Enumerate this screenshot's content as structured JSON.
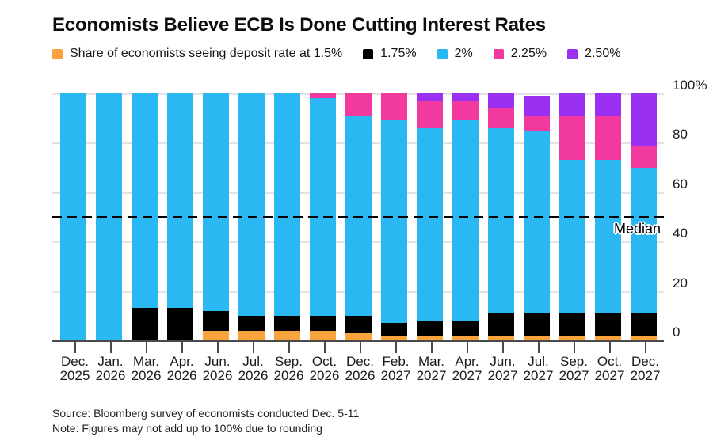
{
  "title": "Economists Believe ECB Is Done Cutting Interest Rates",
  "legend": [
    {
      "label": "Share of economists seeing deposit rate at 1.5%",
      "color": "#F8A33B"
    },
    {
      "label": "1.75%",
      "color": "#000000"
    },
    {
      "label": "2%",
      "color": "#2BB7F2"
    },
    {
      "label": "2.25%",
      "color": "#F2399F"
    },
    {
      "label": "2.50%",
      "color": "#9930F2"
    }
  ],
  "chart_data": {
    "type": "bar",
    "stacked": true,
    "title": "Economists Believe ECB Is Done Cutting Interest Rates",
    "categories": [
      {
        "month": "Dec.",
        "year": "2025"
      },
      {
        "month": "Jan.",
        "year": "2026"
      },
      {
        "month": "Mar.",
        "year": "2026"
      },
      {
        "month": "Apr.",
        "year": "2026"
      },
      {
        "month": "Jun.",
        "year": "2026"
      },
      {
        "month": "Jul.",
        "year": "2026"
      },
      {
        "month": "Sep.",
        "year": "2026"
      },
      {
        "month": "Oct.",
        "year": "2026"
      },
      {
        "month": "Dec.",
        "year": "2026"
      },
      {
        "month": "Feb.",
        "year": "2027"
      },
      {
        "month": "Mar.",
        "year": "2027"
      },
      {
        "month": "Apr.",
        "year": "2027"
      },
      {
        "month": "Jun.",
        "year": "2027"
      },
      {
        "month": "Jul.",
        "year": "2027"
      },
      {
        "month": "Sep.",
        "year": "2027"
      },
      {
        "month": "Oct.",
        "year": "2027"
      },
      {
        "month": "Dec.",
        "year": "2027"
      }
    ],
    "series": [
      {
        "name": "1.5%",
        "color": "#F8A33B",
        "values": [
          0,
          0,
          0,
          0,
          4,
          4,
          4,
          4,
          3,
          2,
          2,
          2,
          2,
          2,
          2,
          2,
          2
        ]
      },
      {
        "name": "1.75%",
        "color": "#000000",
        "values": [
          0,
          0,
          13,
          13,
          8,
          6,
          6,
          6,
          7,
          5,
          6,
          6,
          9,
          9,
          9,
          9,
          9
        ]
      },
      {
        "name": "2%",
        "color": "#2BB7F2",
        "values": [
          100,
          100,
          87,
          87,
          88,
          90,
          90,
          88,
          81,
          82,
          78,
          81,
          75,
          74,
          62,
          62,
          59
        ]
      },
      {
        "name": "2.25%",
        "color": "#F2399F",
        "values": [
          0,
          0,
          0,
          0,
          0,
          0,
          0,
          2,
          9,
          11,
          11,
          8,
          8,
          6,
          18,
          18,
          9
        ]
      },
      {
        "name": "2.50%",
        "color": "#9930F2",
        "values": [
          0,
          0,
          0,
          0,
          0,
          0,
          0,
          0,
          0,
          0,
          3,
          3,
          6,
          8,
          9,
          9,
          21
        ]
      }
    ],
    "ylim": [
      0,
      100
    ],
    "yticks": [
      0,
      20,
      40,
      60,
      80,
      100
    ],
    "ytick_labels": [
      "0",
      "20",
      "40",
      "60",
      "80",
      "100%"
    ],
    "grid": true,
    "legend_position": "top",
    "median_line_value": 50,
    "median_label": "Median"
  },
  "footer": {
    "source": "Source: Bloomberg survey of economists conducted Dec. 5-11",
    "note": "Note: Figures may not add up to 100% due to rounding"
  },
  "colors": {
    "background": "#FFFFFF",
    "gridline": "#E3E3E3",
    "axis": "#4A4A4A",
    "text": "#111111"
  }
}
